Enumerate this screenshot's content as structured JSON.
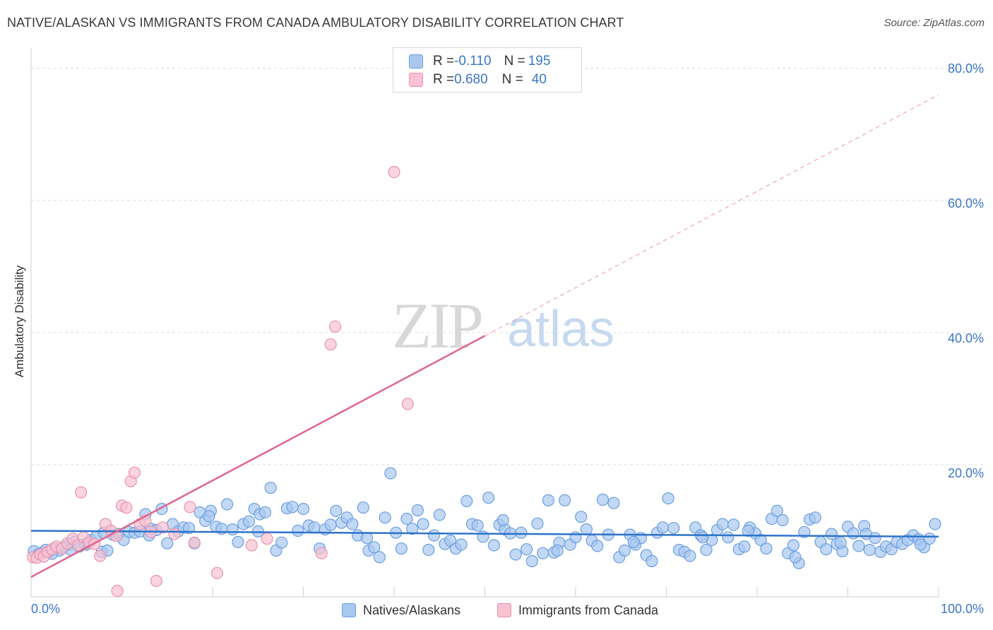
{
  "header": {
    "title": "NATIVE/ALASKAN VS IMMIGRANTS FROM CANADA AMBULATORY DISABILITY CORRELATION CHART",
    "source": "Source: ZipAtlas.com"
  },
  "watermark": {
    "zip": "ZIP",
    "atlas": "atlas"
  },
  "legend_top": {
    "rows": [
      {
        "r_label": "R = ",
        "r_value": "-0.110",
        "n_label": "N = ",
        "n_value": "195",
        "color": "#a8c8f0",
        "border": "#6b9fe0"
      },
      {
        "r_label": "R = ",
        "r_value": "0.680",
        "n_label": "N = ",
        "n_value": "40",
        "color": "#f8c2d2",
        "border": "#e892ad"
      }
    ]
  },
  "axes": {
    "y_title": "Ambulatory Disability",
    "y_ticks": [
      "20.0%",
      "40.0%",
      "60.0%",
      "80.0%"
    ],
    "x_ticks": [
      "0.0%",
      "100.0%"
    ]
  },
  "bottom_legend": [
    {
      "label": "Natives/Alaskans",
      "color": "#a8c8f0",
      "border": "#6b9fe0"
    },
    {
      "label": "Immigrants from Canada",
      "color": "#f8c2d2",
      "border": "#e892ad"
    }
  ],
  "chart_data": {
    "type": "scatter",
    "xlabel": "",
    "ylabel": "Ambulatory Disability",
    "xlim": [
      0,
      100
    ],
    "ylim": [
      0,
      82
    ],
    "y_ticks": [
      20,
      40,
      60,
      80
    ],
    "x_ticks": [
      0,
      100
    ],
    "grid": "horizontal dashed",
    "series": [
      {
        "name": "Natives/Alaskans",
        "color": "#6b9fe0",
        "fill": "#a8c8f0",
        "trend": {
          "x": [
            0,
            100
          ],
          "y": [
            10.0,
            9.1
          ],
          "style": "solid",
          "color": "#2f73c9"
        },
        "points": [
          [
            0.3,
            6.9
          ],
          [
            0.8,
            6.4
          ],
          [
            1.2,
            6.7
          ],
          [
            1.6,
            7.1
          ],
          [
            2.0,
            6.8
          ],
          [
            2.6,
            7.3
          ],
          [
            3.1,
            7.0
          ],
          [
            3.6,
            7.5
          ],
          [
            4.2,
            7.9
          ],
          [
            4.8,
            8.3
          ],
          [
            5.3,
            7.6
          ],
          [
            5.9,
            8.0
          ],
          [
            6.6,
            8.6
          ],
          [
            7.2,
            9.1
          ],
          [
            7.8,
            6.8
          ],
          [
            8.4,
            7.0
          ],
          [
            9.0,
            9.4
          ],
          [
            9.6,
            9.5
          ],
          [
            10.2,
            8.6
          ],
          [
            10.8,
            9.8
          ],
          [
            11.4,
            9.7
          ],
          [
            12.0,
            9.9
          ],
          [
            12.6,
            12.5
          ],
          [
            13.2,
            10.3
          ],
          [
            13.8,
            10.1
          ],
          [
            14.4,
            13.3
          ],
          [
            15.0,
            8.1
          ],
          [
            15.6,
            11.0
          ],
          [
            16.2,
            9.9
          ],
          [
            16.8,
            10.5
          ],
          [
            17.4,
            10.4
          ],
          [
            18.0,
            8.1
          ],
          [
            18.6,
            12.8
          ],
          [
            19.2,
            11.5
          ],
          [
            19.8,
            13.0
          ],
          [
            20.4,
            10.6
          ],
          [
            21.0,
            10.3
          ],
          [
            21.6,
            14.0
          ],
          [
            22.2,
            10.2
          ],
          [
            22.8,
            8.3
          ],
          [
            23.4,
            11.0
          ],
          [
            24.0,
            11.4
          ],
          [
            24.6,
            13.3
          ],
          [
            25.2,
            12.5
          ],
          [
            25.8,
            12.8
          ],
          [
            26.4,
            16.5
          ],
          [
            27.0,
            7.0
          ],
          [
            27.6,
            8.2
          ],
          [
            28.2,
            13.4
          ],
          [
            28.8,
            13.6
          ],
          [
            29.4,
            10.0
          ],
          [
            30.0,
            13.3
          ],
          [
            30.6,
            10.8
          ],
          [
            31.2,
            10.5
          ],
          [
            31.8,
            7.3
          ],
          [
            32.4,
            10.2
          ],
          [
            33.0,
            10.9
          ],
          [
            33.6,
            13.0
          ],
          [
            34.2,
            11.2
          ],
          [
            34.8,
            12.0
          ],
          [
            35.4,
            11.0
          ],
          [
            36.0,
            9.3
          ],
          [
            36.6,
            13.5
          ],
          [
            37.2,
            7.0
          ],
          [
            37.8,
            7.5
          ],
          [
            38.4,
            6.0
          ],
          [
            39.0,
            12.0
          ],
          [
            39.6,
            18.7
          ],
          [
            40.2,
            9.7
          ],
          [
            40.8,
            7.3
          ],
          [
            41.4,
            11.8
          ],
          [
            42.0,
            10.3
          ],
          [
            42.6,
            13.1
          ],
          [
            43.2,
            11.0
          ],
          [
            43.8,
            7.1
          ],
          [
            44.4,
            9.3
          ],
          [
            45.0,
            12.4
          ],
          [
            45.6,
            8.0
          ],
          [
            46.2,
            8.5
          ],
          [
            46.8,
            7.3
          ],
          [
            47.4,
            7.9
          ],
          [
            48.0,
            14.5
          ],
          [
            48.6,
            11.0
          ],
          [
            49.2,
            10.8
          ],
          [
            49.8,
            9.1
          ],
          [
            50.4,
            15.0
          ],
          [
            51.0,
            7.8
          ],
          [
            51.6,
            10.9
          ],
          [
            52.2,
            10.2
          ],
          [
            52.8,
            9.6
          ],
          [
            53.4,
            6.4
          ],
          [
            54.0,
            9.7
          ],
          [
            54.6,
            7.2
          ],
          [
            55.2,
            5.4
          ],
          [
            55.8,
            11.1
          ],
          [
            56.4,
            6.6
          ],
          [
            57.0,
            14.6
          ],
          [
            57.6,
            6.7
          ],
          [
            58.2,
            8.2
          ],
          [
            58.8,
            14.6
          ],
          [
            59.4,
            7.9
          ],
          [
            60.0,
            9.0
          ],
          [
            60.6,
            12.1
          ],
          [
            61.2,
            10.2
          ],
          [
            61.8,
            8.5
          ],
          [
            62.4,
            7.7
          ],
          [
            63.0,
            14.7
          ],
          [
            63.6,
            9.4
          ],
          [
            64.2,
            14.2
          ],
          [
            64.8,
            6.0
          ],
          [
            65.4,
            7.0
          ],
          [
            66.0,
            9.4
          ],
          [
            66.6,
            7.9
          ],
          [
            67.2,
            8.9
          ],
          [
            67.8,
            6.3
          ],
          [
            68.4,
            5.4
          ],
          [
            69.0,
            9.7
          ],
          [
            69.6,
            10.5
          ],
          [
            70.2,
            14.9
          ],
          [
            70.8,
            10.4
          ],
          [
            71.4,
            7.1
          ],
          [
            72.0,
            6.8
          ],
          [
            72.6,
            6.2
          ],
          [
            73.2,
            10.5
          ],
          [
            73.8,
            9.3
          ],
          [
            74.4,
            7.1
          ],
          [
            75.0,
            8.6
          ],
          [
            75.6,
            10.1
          ],
          [
            76.2,
            11.0
          ],
          [
            76.8,
            9.0
          ],
          [
            77.4,
            10.9
          ],
          [
            78.0,
            7.2
          ],
          [
            78.6,
            7.6
          ],
          [
            79.2,
            10.5
          ],
          [
            79.8,
            9.6
          ],
          [
            80.4,
            8.6
          ],
          [
            81.0,
            7.3
          ],
          [
            81.6,
            11.8
          ],
          [
            82.2,
            13.0
          ],
          [
            82.8,
            11.6
          ],
          [
            83.4,
            6.6
          ],
          [
            84.0,
            7.8
          ],
          [
            84.6,
            5.1
          ],
          [
            85.2,
            9.8
          ],
          [
            85.8,
            11.7
          ],
          [
            86.4,
            12.0
          ],
          [
            87.0,
            8.3
          ],
          [
            87.6,
            7.2
          ],
          [
            88.2,
            9.5
          ],
          [
            88.8,
            8.0
          ],
          [
            89.4,
            6.9
          ],
          [
            90.0,
            10.6
          ],
          [
            90.6,
            9.6
          ],
          [
            91.2,
            7.7
          ],
          [
            91.8,
            10.7
          ],
          [
            92.4,
            7.1
          ],
          [
            93.0,
            8.9
          ],
          [
            93.6,
            6.8
          ],
          [
            94.2,
            7.6
          ],
          [
            94.8,
            7.2
          ],
          [
            95.4,
            8.3
          ],
          [
            96.0,
            8.0
          ],
          [
            96.6,
            8.6
          ],
          [
            97.2,
            9.3
          ],
          [
            97.8,
            8.7
          ],
          [
            98.4,
            7.5
          ],
          [
            99.0,
            8.8
          ],
          [
            99.6,
            11.0
          ],
          [
            2.3,
            6.5
          ],
          [
            4.4,
            7.1
          ],
          [
            6.1,
            7.9
          ],
          [
            8.0,
            9.7
          ],
          [
            13.0,
            9.3
          ],
          [
            19.6,
            12.2
          ],
          [
            25.0,
            9.9
          ],
          [
            37.0,
            8.9
          ],
          [
            52.0,
            11.6
          ],
          [
            58.0,
            7.0
          ],
          [
            66.4,
            8.3
          ],
          [
            74.0,
            9.0
          ],
          [
            79.0,
            10.0
          ],
          [
            84.2,
            6.0
          ],
          [
            89.2,
            8.2
          ],
          [
            92.0,
            9.5
          ],
          [
            98.0,
            7.9
          ]
        ]
      },
      {
        "name": "Immigrants from Canada",
        "color": "#e892ad",
        "fill": "#f8c2d2",
        "trend": {
          "x": [
            0,
            50
          ],
          "y": [
            3.0,
            39.5
          ],
          "style": "solid",
          "extended_to": [
            100,
            76.0
          ],
          "extended_style": "dashed",
          "color": "#e0668f"
        },
        "points": [
          [
            0.2,
            6.0
          ],
          [
            0.6,
            5.9
          ],
          [
            1.0,
            6.4
          ],
          [
            1.4,
            6.1
          ],
          [
            1.8,
            6.8
          ],
          [
            2.3,
            7.2
          ],
          [
            2.8,
            7.6
          ],
          [
            3.4,
            7.3
          ],
          [
            4.0,
            8.1
          ],
          [
            4.6,
            8.8
          ],
          [
            5.2,
            7.8
          ],
          [
            5.8,
            9.0
          ],
          [
            6.4,
            8.2
          ],
          [
            7.0,
            8.0
          ],
          [
            7.6,
            6.2
          ],
          [
            8.2,
            11.0
          ],
          [
            8.8,
            10.0
          ],
          [
            9.4,
            9.2
          ],
          [
            10.0,
            13.8
          ],
          [
            10.5,
            13.5
          ],
          [
            11.0,
            17.5
          ],
          [
            11.4,
            18.8
          ],
          [
            12.0,
            11.0
          ],
          [
            12.6,
            11.5
          ],
          [
            13.2,
            9.8
          ],
          [
            13.8,
            2.4
          ],
          [
            14.5,
            10.5
          ],
          [
            15.8,
            9.5
          ],
          [
            17.5,
            13.6
          ],
          [
            18.0,
            8.2
          ],
          [
            20.5,
            3.6
          ],
          [
            24.3,
            7.8
          ],
          [
            26.0,
            8.8
          ],
          [
            32.0,
            6.6
          ],
          [
            33.0,
            38.2
          ],
          [
            33.5,
            40.9
          ],
          [
            40.0,
            64.3
          ],
          [
            41.5,
            29.2
          ],
          [
            5.5,
            15.8
          ],
          [
            9.5,
            0.9
          ]
        ]
      }
    ]
  }
}
